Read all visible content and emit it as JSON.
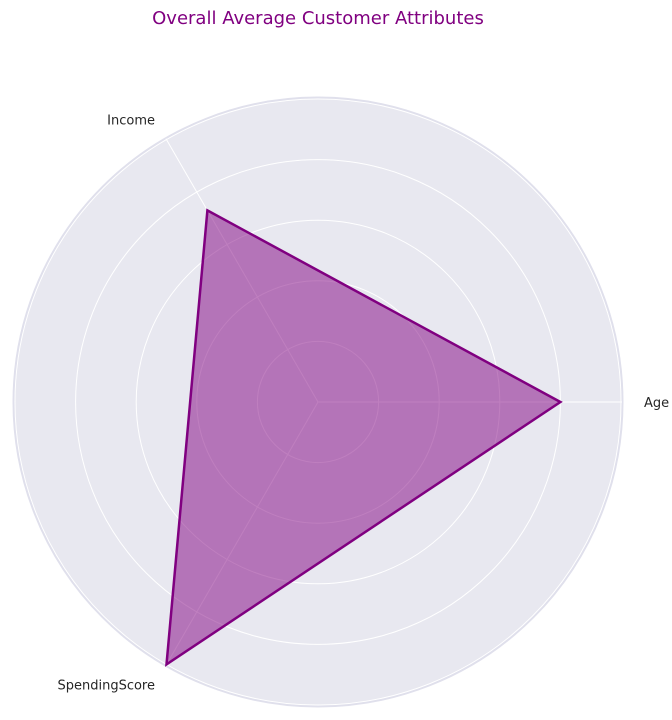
{
  "chart_data": {
    "type": "radar",
    "title": "Overall Average Customer Attributes",
    "axes": [
      "Age",
      "Income",
      "SpendingScore"
    ],
    "series": [
      {
        "values": [
          0.8,
          0.73,
          1.0
        ]
      }
    ],
    "rlim": [
      0,
      1
    ],
    "ring_count": 5,
    "grid": true,
    "colors": {
      "title": "#800080",
      "line": "#800080",
      "fill": "#800080",
      "fill_opacity": 0.5,
      "background": "#e8e8f0",
      "grid": "#ffffff",
      "outer_ring": "#e0e0ec"
    }
  }
}
